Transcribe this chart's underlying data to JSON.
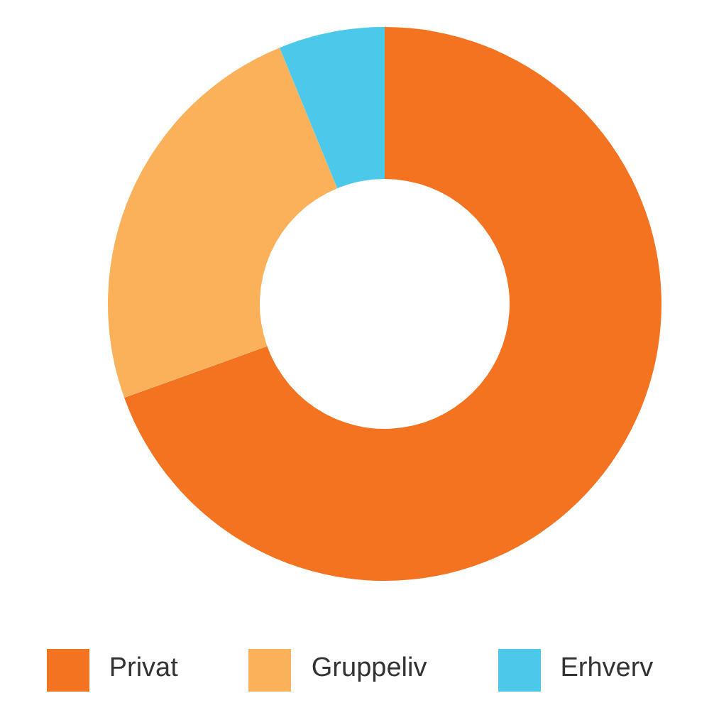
{
  "chart_data": {
    "type": "donut",
    "categories": [
      "Privat",
      "Gruppeliv",
      "Erhverv"
    ],
    "values": [
      69.5,
      24.3,
      6.2
    ],
    "colors": [
      "#f37321",
      "#fbb05a",
      "#4cc8ea"
    ],
    "legend": "bottom"
  }
}
